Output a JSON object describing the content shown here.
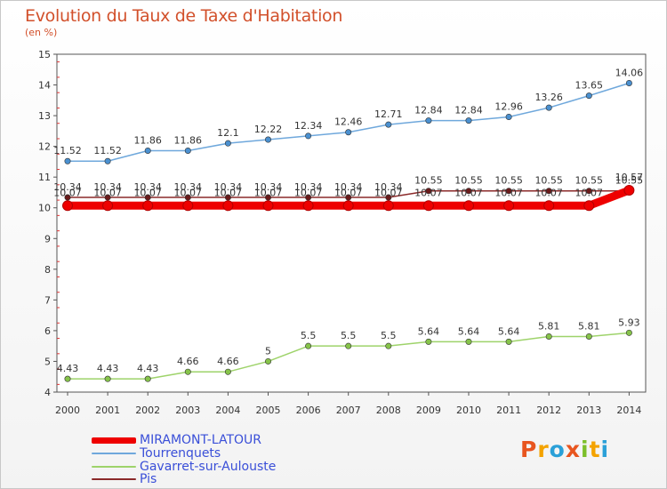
{
  "header": {
    "title": "Evolution du Taux de Taxe d'Habitation",
    "subtitle": "(en %)"
  },
  "logo": {
    "letters": [
      "P",
      "r",
      "o",
      "x",
      "i",
      "t",
      "i"
    ],
    "colors": [
      "#e8551f",
      "#f4a300",
      "#2aa0d8",
      "#e8551f",
      "#7cbf2a",
      "#f4a300",
      "#2aa0d8"
    ]
  },
  "chart_data": {
    "type": "line",
    "x": [
      "2000",
      "2001",
      "2002",
      "2003",
      "2004",
      "2005",
      "2006",
      "2007",
      "2008",
      "2009",
      "2010",
      "2011",
      "2012",
      "2013",
      "2014"
    ],
    "ylim": [
      4,
      15
    ],
    "yticks": [
      "4",
      "5",
      "6",
      "7",
      "8",
      "9",
      "10",
      "11",
      "12",
      "13",
      "14",
      "15"
    ],
    "grid": false,
    "legend_position": "bottom-left",
    "series": [
      {
        "name": "MIRAMONT-LATOUR",
        "color": "#ee0000",
        "values": [
          10.07,
          10.07,
          10.07,
          10.07,
          10.07,
          10.07,
          10.07,
          10.07,
          10.07,
          10.07,
          10.07,
          10.07,
          10.07,
          10.07,
          10.57
        ],
        "labels": [
          "10.07",
          "10.07",
          "10.07",
          "10.07",
          "10.07",
          "10.07",
          "10.07",
          "10.07",
          "10.07",
          "10.07",
          "10.07",
          "10.07",
          "10.07",
          "10.07",
          "10.57"
        ]
      },
      {
        "name": "Tourrenquets",
        "color": "#6fa8dc",
        "values": [
          11.52,
          11.52,
          11.86,
          11.86,
          12.1,
          12.22,
          12.34,
          12.46,
          12.71,
          12.84,
          12.84,
          12.96,
          13.26,
          13.65,
          14.06
        ],
        "labels": [
          "11.52",
          "11.52",
          "11.86",
          "11.86",
          "12.1",
          "12.22",
          "12.34",
          "12.46",
          "12.71",
          "12.84",
          "12.84",
          "12.96",
          "13.26",
          "13.65",
          "14.06"
        ]
      },
      {
        "name": "Gavarret-sur-Aulouste",
        "color": "#9ed36a",
        "values": [
          4.43,
          4.43,
          4.43,
          4.66,
          4.66,
          5,
          5.5,
          5.5,
          5.5,
          5.64,
          5.64,
          5.64,
          5.81,
          5.81,
          5.93
        ],
        "labels": [
          "4.43",
          "4.43",
          "4.43",
          "4.66",
          "4.66",
          "5",
          "5.5",
          "5.5",
          "5.5",
          "5.64",
          "5.64",
          "5.64",
          "5.81",
          "5.81",
          "5.93"
        ]
      },
      {
        "name": "Pis",
        "color": "#8b2a2a",
        "values": [
          10.34,
          10.34,
          10.34,
          10.34,
          10.34,
          10.34,
          10.34,
          10.34,
          10.34,
          10.55,
          10.55,
          10.55,
          10.55,
          10.55,
          10.55
        ],
        "labels": [
          "10.34",
          "10.34",
          "10.34",
          "10.34",
          "10.34",
          "10.34",
          "10.34",
          "10.34",
          "10.34",
          "10.55",
          "10.55",
          "10.55",
          "10.55",
          "10.55",
          "10.55"
        ]
      }
    ]
  }
}
